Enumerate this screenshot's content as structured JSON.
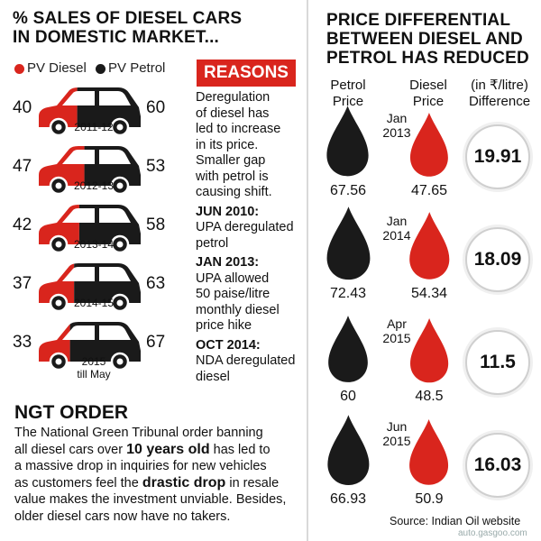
{
  "left": {
    "title_line1": "% SALES OF DIESEL CARS",
    "title_line2": "IN DOMESTIC MARKET...",
    "legend": {
      "diesel": "PV Diesel",
      "petrol": "PV Petrol"
    },
    "colors": {
      "diesel": "#d9251d",
      "petrol": "#1a1a1a"
    }
  },
  "chart_data": [
    {
      "type": "bar",
      "title": "% SALES OF DIESEL CARS IN DOMESTIC MARKET...",
      "categories": [
        "2011-12",
        "2012-13",
        "2013-14",
        "2014-15",
        "2015 till May"
      ],
      "series": [
        {
          "name": "PV Diesel",
          "values": [
            40,
            47,
            42,
            37,
            33
          ]
        },
        {
          "name": "PV Petrol",
          "values": [
            60,
            53,
            58,
            63,
            67
          ]
        }
      ],
      "rows": [
        {
          "year": "2011-12",
          "year2": "",
          "diesel": "40",
          "petrol": "60"
        },
        {
          "year": "2012-13",
          "year2": "",
          "diesel": "47",
          "petrol": "53"
        },
        {
          "year": "2013-14",
          "year2": "",
          "diesel": "42",
          "petrol": "58"
        },
        {
          "year": "2014-15",
          "year2": "",
          "diesel": "37",
          "petrol": "63"
        },
        {
          "year": "2015",
          "year2": "till May",
          "diesel": "33",
          "petrol": "67"
        }
      ]
    },
    {
      "type": "table",
      "title": "PRICE DIFFERENTIAL BETWEEN DIESEL AND PETROL HAS REDUCED",
      "columns": [
        "Petrol Price",
        "Diesel Price",
        "(in ₹/litre) Difference"
      ],
      "rows": [
        {
          "month": "Jan",
          "year": "2013",
          "petrol": "67.56",
          "diesel": "47.65",
          "diff": "19.91"
        },
        {
          "month": "Jan",
          "year": "2014",
          "petrol": "72.43",
          "diesel": "54.34",
          "diff": "18.09"
        },
        {
          "month": "Apr",
          "year": "2015",
          "petrol": "60",
          "diesel": "48.5",
          "diff": "11.5"
        },
        {
          "month": "Jun",
          "year": "2015",
          "petrol": "66.93",
          "diesel": "50.9",
          "diff": "16.03"
        }
      ]
    }
  ],
  "reasons": {
    "title": "REASONS",
    "intro": [
      "Deregulation",
      "of diesel has",
      "led to increase",
      "in its price.",
      "Smaller gap",
      "with petrol is",
      "causing shift."
    ],
    "events": [
      {
        "date": "JUN 2010:",
        "lines": [
          "UPA deregulated",
          "petrol"
        ]
      },
      {
        "date": "JAN 2013:",
        "lines": [
          "UPA allowed",
          "50 paise/litre",
          "monthly diesel",
          "price hike"
        ]
      },
      {
        "date": "OCT 2014:",
        "lines": [
          "NDA deregulated",
          "diesel"
        ]
      }
    ]
  },
  "ngt": {
    "title": "NGT ORDER",
    "l1": "The National Green Tribunal order banning",
    "l2a": "all diesel cars over ",
    "l2b": "10 years old",
    "l2c": " has led to",
    "l3": "a massive drop in inquiries for new vehicles",
    "l4a": "as customers feel the ",
    "l4b": "drastic drop",
    "l4c": " in resale",
    "l5": "value makes the investment unviable. Besides,",
    "l6": "older diesel cars now have no takers."
  },
  "right": {
    "title_line1": "PRICE DIFFERENTIAL",
    "title_line2": "BETWEEN DIESEL AND",
    "title_line3": "PETROL HAS REDUCED",
    "col_petrol": [
      "Petrol",
      "Price"
    ],
    "col_diesel": [
      "Diesel",
      "Price"
    ],
    "col_diff": [
      "(in ₹/litre)",
      "Difference"
    ],
    "source": "Source: Indian Oil website"
  },
  "watermark": "auto.gasgoo.com"
}
